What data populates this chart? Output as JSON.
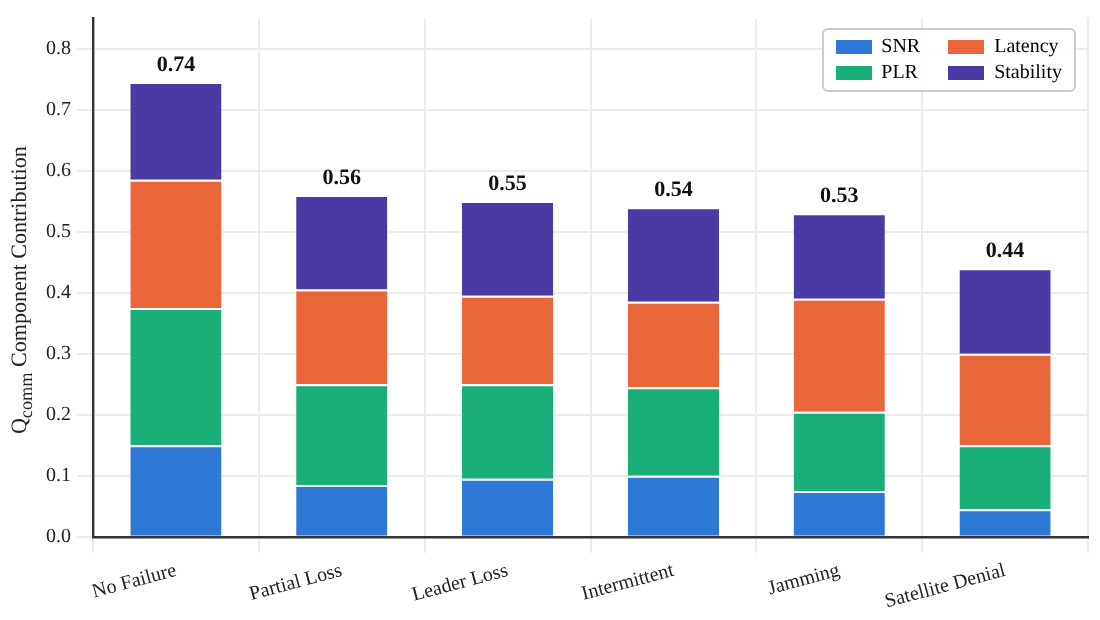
{
  "chart_data": {
    "type": "bar",
    "stacked": true,
    "ylabel": "Q$_{comm}$ Component Contribution",
    "categories": [
      "No Failure",
      "Partial Loss",
      "Leader Loss",
      "Intermittent",
      "Jamming",
      "Satellite Denial"
    ],
    "series": [
      {
        "name": "SNR",
        "color": "#2e78d6",
        "values": [
          0.15,
          0.085,
          0.095,
          0.1,
          0.075,
          0.045
        ]
      },
      {
        "name": "PLR",
        "color": "#1aaf78",
        "values": [
          0.225,
          0.165,
          0.155,
          0.145,
          0.13,
          0.105
        ]
      },
      {
        "name": "Latency",
        "color": "#e8663a",
        "values": [
          0.21,
          0.155,
          0.145,
          0.14,
          0.185,
          0.15
        ]
      },
      {
        "name": "Stability",
        "color": "#4b3aa3",
        "values": [
          0.16,
          0.155,
          0.155,
          0.155,
          0.14,
          0.14
        ]
      }
    ],
    "totals": [
      "0.74",
      "0.56",
      "0.55",
      "0.54",
      "0.53",
      "0.44"
    ],
    "ylim": [
      0,
      0.85
    ],
    "yticks": [
      {
        "value": 0,
        "label": "0.0"
      },
      0.1,
      0.2,
      0.3,
      0.4,
      0.5,
      0.6,
      0.7,
      0.8
    ],
    "grid": true,
    "legend": "top right"
  }
}
